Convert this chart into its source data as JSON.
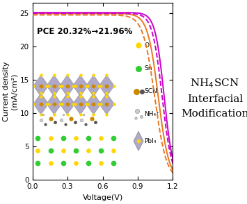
{
  "annotation": "PCE 20.32%→21.96%",
  "xlabel": "Voltage(V)",
  "ylabel": "Current density\n(mA/cm²)",
  "xlim": [
    0.0,
    1.2
  ],
  "ylim": [
    0.0,
    26.5
  ],
  "xticks": [
    0.0,
    0.3,
    0.6,
    0.9,
    1.2
  ],
  "yticks": [
    0,
    5,
    10,
    15,
    20,
    25
  ],
  "color_orange": "#E87820",
  "color_purple": "#CC00CC",
  "title_text": "NH$_4$SCN\nInterfacial\nModification",
  "legend_labels": [
    "O",
    "Sn",
    "SCN",
    "NH₄⁺",
    "PbI₄"
  ],
  "legend_colors": [
    "#FFD700",
    "#32CD32",
    "#FF8C00",
    "#C0C0C0",
    "#9370DB"
  ],
  "color_yellow": "#FFD700",
  "color_green": "#32CD32",
  "color_brown": "#CC8800",
  "color_lavender": "#B0A8C8",
  "color_darkgray": "#555555",
  "color_lightgray": "#CCCCCC"
}
